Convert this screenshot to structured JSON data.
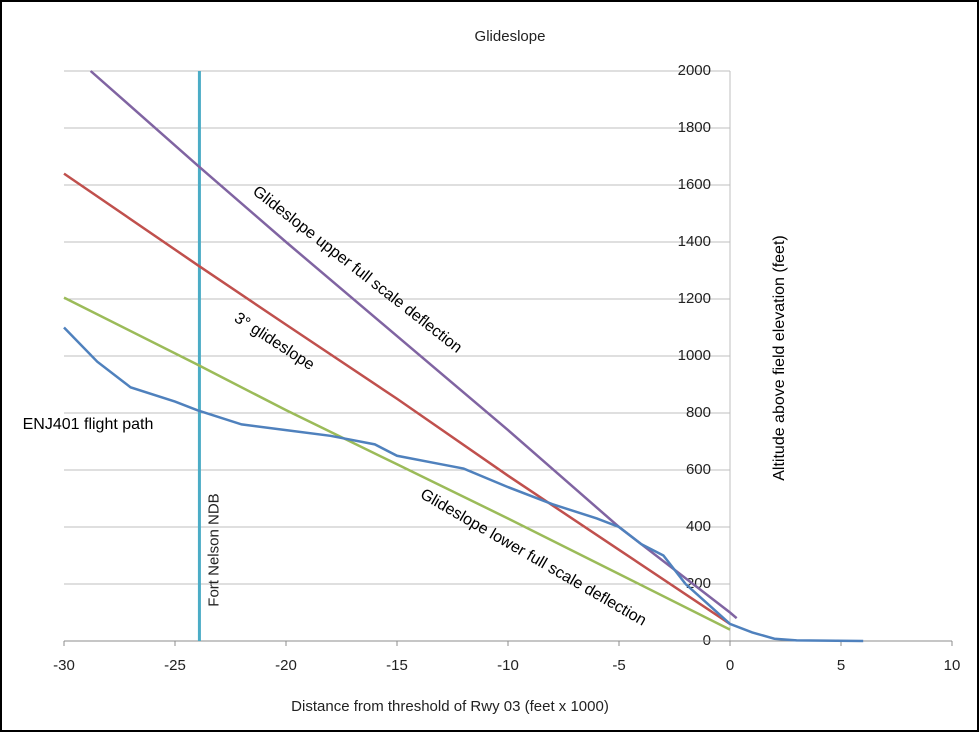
{
  "chart_data": {
    "type": "line",
    "title": "Glideslope",
    "x_label": "Distance from threshold of Rwy 03 (feet x 1000)",
    "y_label": "Altitude above field elevation (feet)",
    "xlim": [
      -30,
      10
    ],
    "xticks": [
      -30,
      -25,
      -20,
      -15,
      -10,
      -5,
      0,
      5,
      10
    ],
    "ylim": [
      0,
      2000
    ],
    "yticks": [
      0,
      200,
      400,
      600,
      800,
      1000,
      1200,
      1400,
      1600,
      1800,
      2000
    ],
    "grid": true,
    "series": [
      {
        "name": "Glideslope upper full scale deflection",
        "color": "#8064a2",
        "x": [
          -28.8,
          -24,
          -20,
          -15,
          -10,
          -5,
          0,
          0.3
        ],
        "values": [
          2000,
          1670,
          1400,
          1070,
          740,
          400,
          100,
          80
        ]
      },
      {
        "name": "3° glideslope",
        "color": "#c0504d",
        "x": [
          -30,
          -24,
          -20,
          -15,
          -10,
          -5,
          0
        ],
        "values": [
          1640,
          1320,
          1110,
          850,
          580,
          320,
          60
        ]
      },
      {
        "name": "Glideslope lower full scale deflection",
        "color": "#9bbb59",
        "x": [
          -30,
          -24,
          -20,
          -15,
          -10,
          -5,
          0
        ],
        "values": [
          1205,
          970,
          810,
          620,
          430,
          235,
          40
        ]
      },
      {
        "name": "ENJ401 flight path",
        "color": "#4f81bd",
        "x": [
          -30,
          -28.5,
          -27,
          -25,
          -24,
          -22,
          -20,
          -18,
          -16,
          -15,
          -13,
          -12,
          -10,
          -8,
          -6,
          -5,
          -4,
          -3,
          -2,
          -1,
          0,
          1,
          2,
          3,
          6
        ],
        "values": [
          1100,
          980,
          890,
          840,
          810,
          760,
          740,
          720,
          690,
          650,
          620,
          605,
          540,
          480,
          430,
          400,
          340,
          300,
          200,
          130,
          60,
          30,
          8,
          2,
          0
        ]
      }
    ],
    "vertical_lines": [
      {
        "x": -23.9,
        "label": "Fort Nelson NDB",
        "color": "#4bacc6"
      }
    ]
  }
}
